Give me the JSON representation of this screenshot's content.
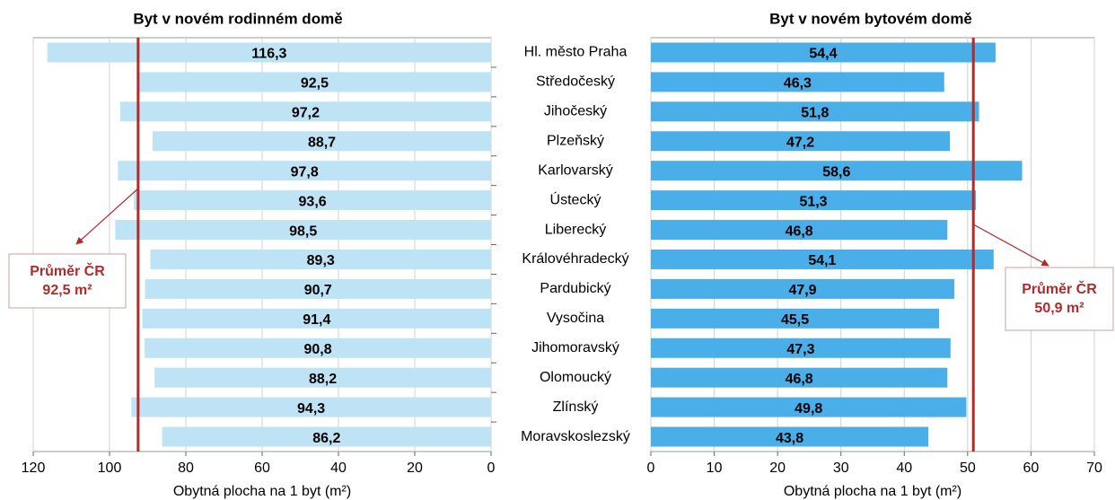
{
  "chart_data": [
    {
      "type": "bar",
      "orientation": "horizontal",
      "title": "Byt v novém rodinném domě",
      "values": [
        116.3,
        92.5,
        97.2,
        88.7,
        97.8,
        93.6,
        98.5,
        89.3,
        90.7,
        91.4,
        90.8,
        88.2,
        94.3,
        86.2
      ],
      "value_labels": [
        "116,3",
        "92,5",
        "97,2",
        "88,7",
        "97,8",
        "93,6",
        "98,5",
        "89,3",
        "90,7",
        "91,4",
        "90,8",
        "88,2",
        "94,3",
        "86,2"
      ],
      "color": "#bde3f5",
      "xlim": [
        120,
        0
      ],
      "xticks": [
        120,
        100,
        80,
        60,
        40,
        20,
        0
      ],
      "x_label": "Obytná plocha na 1 byt (m²)",
      "grid": true,
      "annotation": {
        "text": "Průměr ČR",
        "value": 92.5,
        "value_label": "92,5 m²",
        "color": "#b22a2a"
      }
    },
    {
      "type": "bar",
      "orientation": "horizontal",
      "title": "Byt v novém bytovém domě",
      "categories": [
        "Hl. město Praha",
        "Středočeský",
        "Jihočeský",
        "Plzeňský",
        "Karlovarský",
        "Ústecký",
        "Liberecký",
        "Královéhradecký",
        "Pardubický",
        "Vysočina",
        "Jihomoravský",
        "Olomoucký",
        "Zlínský",
        "Moravskoslezský"
      ],
      "values": [
        54.4,
        46.3,
        51.8,
        47.2,
        58.6,
        51.3,
        46.8,
        54.1,
        47.9,
        45.5,
        47.3,
        46.8,
        49.8,
        43.8
      ],
      "value_labels": [
        "54,4",
        "46,3",
        "51,8",
        "47,2",
        "58,6",
        "51,3",
        "46,8",
        "54,1",
        "47,9",
        "45,5",
        "47,3",
        "46,8",
        "49,8",
        "43,8"
      ],
      "color": "#4aaee8",
      "xlim": [
        0,
        70
      ],
      "xticks": [
        0,
        10,
        20,
        30,
        40,
        50,
        60,
        70
      ],
      "x_label": "Obytná plocha na 1 byt (m²)",
      "grid": true,
      "annotation": {
        "text": "Průměr ČR",
        "value": 50.9,
        "value_label": "50,9 m²",
        "color": "#b22a2a"
      }
    }
  ]
}
